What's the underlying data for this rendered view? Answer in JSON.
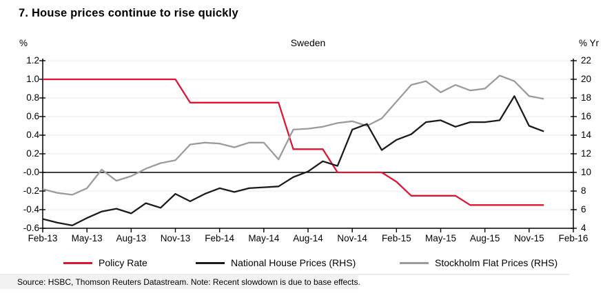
{
  "title": "7. House prices continue to rise quickly",
  "subtitle": "Sweden",
  "source_note": "Source: HSBC, Thomson Reuters Datastream. Note: Recent slowdown is due to base effects.",
  "colors": {
    "policy_rate": "#dd1532",
    "national_house_prices": "#1a1a1a",
    "stockholm_flat_prices": "#9b9b9b",
    "gridline": "#ebebeb",
    "axis": "#000000"
  },
  "left_axis": {
    "unit": "%",
    "tick_labels": [
      "1.2",
      "1.0",
      "0.8",
      "0.6",
      "0.4",
      "0.2",
      "-0.0",
      "-0.2",
      "-0.4",
      "-0.6"
    ],
    "tick_values": [
      1.2,
      1.0,
      0.8,
      0.6,
      0.4,
      0.2,
      0.0,
      -0.2,
      -0.4,
      -0.6
    ]
  },
  "right_axis": {
    "unit": "% Yr",
    "tick_labels": [
      "22",
      "20",
      "18",
      "16",
      "14",
      "12",
      "10",
      "8",
      "6",
      "4"
    ],
    "tick_values": [
      22,
      20,
      18,
      16,
      14,
      12,
      10,
      8,
      6,
      4
    ]
  },
  "x_axis": {
    "tick_labels": [
      "Feb-13",
      "May-13",
      "Aug-13",
      "Nov-13",
      "Feb-14",
      "May-14",
      "Aug-14",
      "Nov-14",
      "Feb-15",
      "May-15",
      "Aug-15",
      "Nov-15",
      "Feb-16"
    ]
  },
  "legend": {
    "items": [
      {
        "label": "Policy Rate",
        "color": "#dd1532"
      },
      {
        "label": "National House Prices (RHS)",
        "color": "#1a1a1a"
      },
      {
        "label": "Stockholm Flat Prices (RHS)",
        "color": "#9b9b9b"
      }
    ]
  },
  "chart_data": {
    "type": "line",
    "title": "7. House prices continue to rise quickly",
    "subtitle": "Sweden",
    "grid": true,
    "legend_position": "bottom",
    "left_ylabel": "%",
    "left_ylim": [
      -0.6,
      1.2
    ],
    "right_ylabel": "% Yr",
    "right_ylim": [
      4,
      22
    ],
    "x": [
      "Feb-13",
      "Mar-13",
      "Apr-13",
      "May-13",
      "Jun-13",
      "Jul-13",
      "Aug-13",
      "Sep-13",
      "Oct-13",
      "Nov-13",
      "Dec-13",
      "Jan-14",
      "Feb-14",
      "Mar-14",
      "Apr-14",
      "May-14",
      "Jun-14",
      "Jul-14",
      "Aug-14",
      "Sep-14",
      "Oct-14",
      "Nov-14",
      "Dec-14",
      "Jan-15",
      "Feb-15",
      "Mar-15",
      "Apr-15",
      "May-15",
      "Jun-15",
      "Jul-15",
      "Aug-15",
      "Sep-15",
      "Oct-15",
      "Nov-15",
      "Dec-15"
    ],
    "x_tick_labels": [
      "Feb-13",
      "May-13",
      "Aug-13",
      "Nov-13",
      "Feb-14",
      "May-14",
      "Aug-14",
      "Nov-14",
      "Feb-15",
      "May-15",
      "Aug-15",
      "Nov-15",
      "Feb-16"
    ],
    "x_axis_extends_to": "Feb-16",
    "series": [
      {
        "name": "Policy Rate",
        "axis": "left",
        "color": "#dd1532",
        "values": [
          1.0,
          1.0,
          1.0,
          1.0,
          1.0,
          1.0,
          1.0,
          1.0,
          1.0,
          1.0,
          0.75,
          0.75,
          0.75,
          0.75,
          0.75,
          0.75,
          0.75,
          0.25,
          0.25,
          0.25,
          0.0,
          0.0,
          0.0,
          0.0,
          -0.1,
          -0.25,
          -0.25,
          -0.25,
          -0.25,
          -0.35,
          -0.35,
          -0.35,
          -0.35,
          -0.35,
          -0.35
        ]
      },
      {
        "name": "National House Prices (RHS)",
        "axis": "right",
        "color": "#1a1a1a",
        "values": [
          5.0,
          4.6,
          4.3,
          5.1,
          5.8,
          6.1,
          5.6,
          6.7,
          6.2,
          7.7,
          6.9,
          7.7,
          8.3,
          7.9,
          8.3,
          8.4,
          8.5,
          9.5,
          10.1,
          11.2,
          10.7,
          14.6,
          15.2,
          12.4,
          13.5,
          14.1,
          15.4,
          15.6,
          14.9,
          15.4,
          15.4,
          15.6,
          18.2,
          15.0,
          14.4
        ]
      },
      {
        "name": "Stockholm Flat Prices (RHS)",
        "axis": "right",
        "color": "#9b9b9b",
        "values": [
          8.2,
          7.8,
          7.6,
          8.3,
          10.3,
          9.1,
          9.6,
          10.4,
          11.0,
          11.3,
          13.0,
          13.2,
          13.1,
          12.7,
          13.2,
          13.2,
          11.4,
          14.6,
          14.7,
          14.9,
          15.3,
          15.5,
          15.0,
          15.8,
          17.6,
          19.4,
          19.8,
          18.6,
          19.4,
          18.8,
          19.0,
          20.4,
          19.8,
          18.2,
          17.9
        ]
      }
    ]
  }
}
